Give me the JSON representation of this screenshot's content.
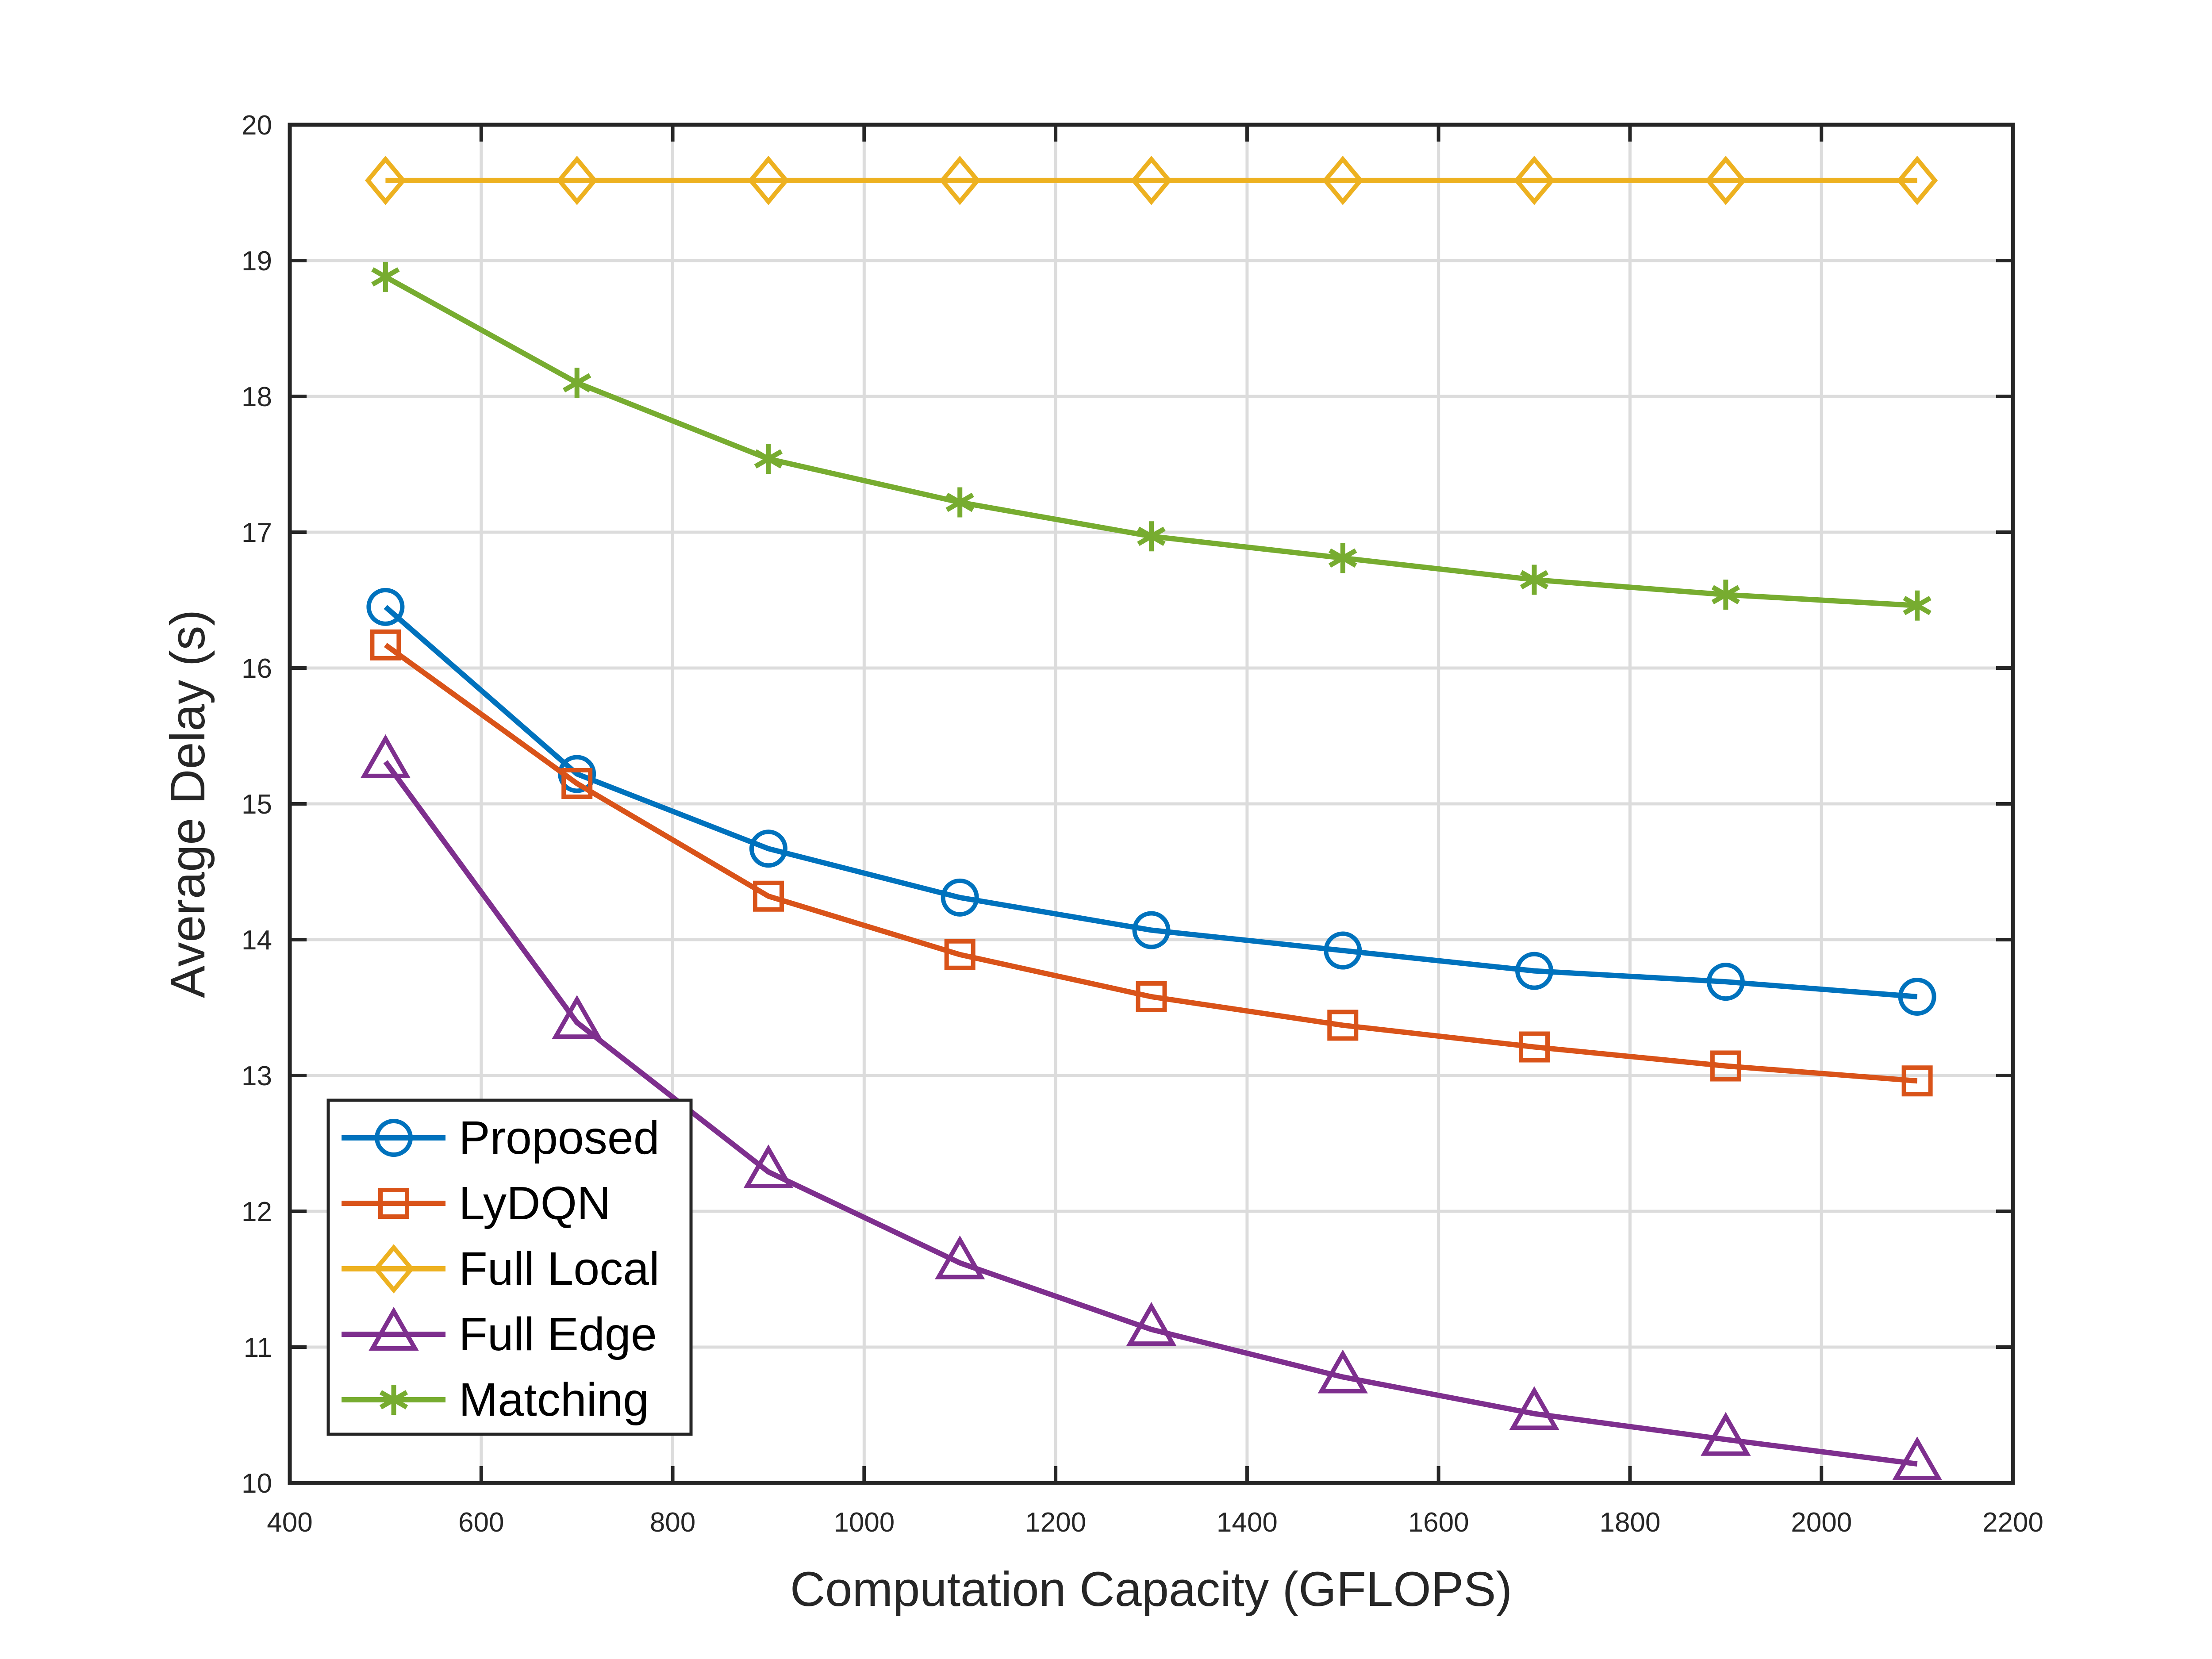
{
  "chart_data": {
    "type": "line",
    "title": "",
    "xlabel": "Computation Capacity (GFLOPS)",
    "ylabel": "Average Delay (s)",
    "xlim": [
      400,
      2200
    ],
    "ylim": [
      10,
      20
    ],
    "xticks": [
      400,
      600,
      800,
      1000,
      1200,
      1400,
      1600,
      1800,
      2000,
      2200
    ],
    "yticks": [
      10,
      11,
      12,
      13,
      14,
      15,
      16,
      17,
      18,
      19,
      20
    ],
    "grid": true,
    "legend_position": "bottom-left",
    "x": [
      500,
      700,
      900,
      1100,
      1300,
      1500,
      1700,
      1900,
      2100
    ],
    "series": [
      {
        "name": "Proposed",
        "color": "#0072BD",
        "marker": "circle",
        "values": [
          16.45,
          15.22,
          14.67,
          14.31,
          14.07,
          13.92,
          13.77,
          13.69,
          13.58
        ]
      },
      {
        "name": "LyDQN",
        "color": "#D95319",
        "marker": "square",
        "values": [
          16.17,
          15.15,
          14.32,
          13.89,
          13.58,
          13.37,
          13.21,
          13.07,
          12.96
        ]
      },
      {
        "name": "Full Local",
        "color": "#EDB120",
        "marker": "diamond",
        "values": [
          19.59,
          19.59,
          19.59,
          19.59,
          19.59,
          19.59,
          19.59,
          19.59,
          19.59
        ]
      },
      {
        "name": "Full Edge",
        "color": "#7E2F8E",
        "marker": "triangle",
        "values": [
          15.31,
          13.39,
          12.29,
          11.62,
          11.13,
          10.78,
          10.51,
          10.32,
          10.14
        ]
      },
      {
        "name": "Matching",
        "color": "#77AC30",
        "marker": "asterisk",
        "values": [
          18.88,
          18.1,
          17.54,
          17.22,
          16.97,
          16.81,
          16.65,
          16.54,
          16.46
        ]
      }
    ]
  }
}
